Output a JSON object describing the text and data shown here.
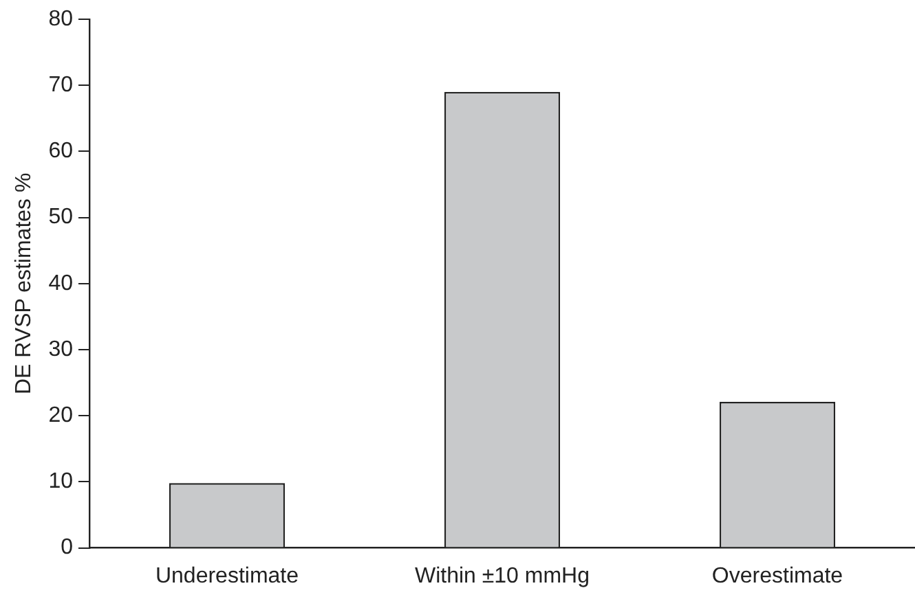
{
  "chart_data": {
    "type": "bar",
    "ylabel": "DE RVSP estimates %",
    "categories": [
      "Underestimate",
      "Within ±10 mmHg",
      "Overestimate"
    ],
    "values": [
      9.8,
      69,
      22.1
    ],
    "color": "#c8c9cb",
    "ylim": [
      0,
      80
    ],
    "yticks": [
      0,
      10,
      20,
      30,
      40,
      50,
      60,
      70,
      80
    ],
    "grid": false,
    "legend": false
  }
}
